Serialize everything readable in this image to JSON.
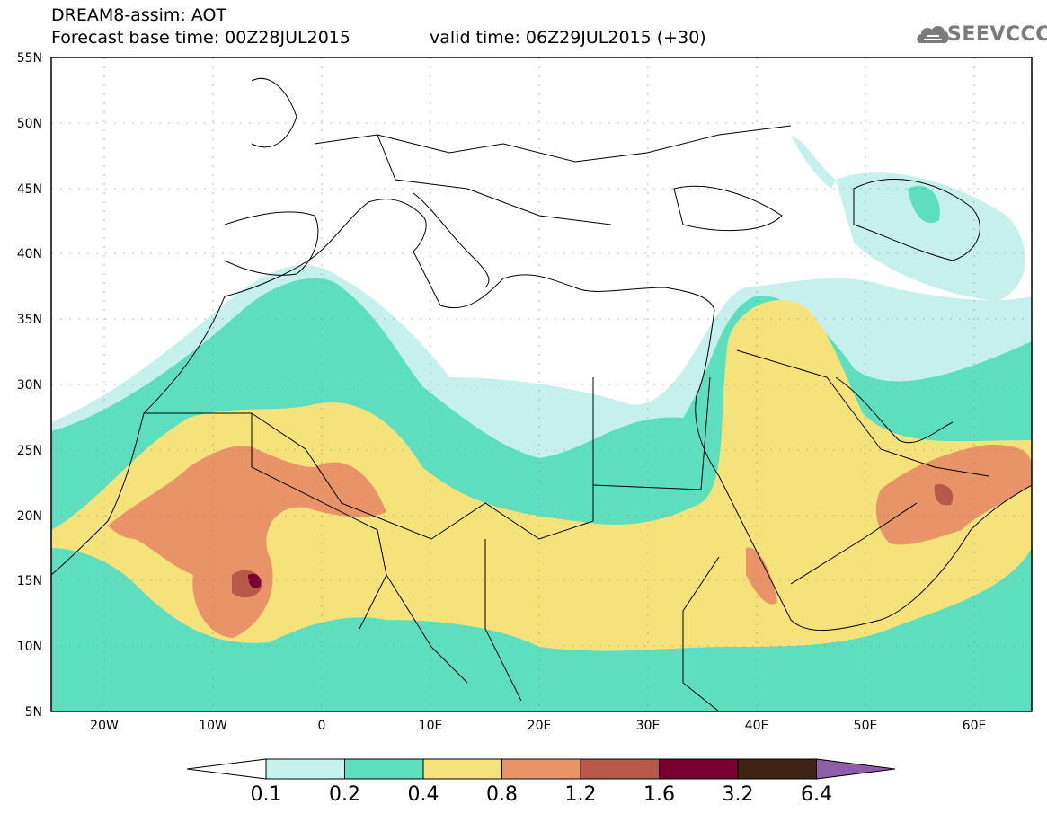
{
  "header": {
    "line1": "DREAM8-assim: AOT",
    "line2": "Forecast base time: 00Z28JUL2015",
    "valid": "valid time: 06Z29JUL2015 (+30)"
  },
  "logo": {
    "text": "SEEVCCC",
    "icon": "cloud-icon"
  },
  "map": {
    "lon_range": [
      -25,
      65
    ],
    "lat_range": [
      5,
      55
    ],
    "lat_labels": [
      "5N",
      "10N",
      "15N",
      "20N",
      "25N",
      "30N",
      "35N",
      "40N",
      "45N",
      "50N",
      "55N"
    ],
    "lon_labels": [
      "20W",
      "10W",
      "0",
      "10E",
      "20E",
      "30E",
      "40E",
      "50E",
      "60E"
    ]
  },
  "colorbar": {
    "levels": [
      "0.1",
      "0.2",
      "0.4",
      "0.8",
      "1.2",
      "1.6",
      "3.2",
      "6.4"
    ],
    "colors": [
      "#ffffff",
      "#c6f0ec",
      "#5ddfbf",
      "#f6e27a",
      "#e99468",
      "#b85848",
      "#7a0032",
      "#3d2414",
      "#8e5fa8"
    ]
  }
}
